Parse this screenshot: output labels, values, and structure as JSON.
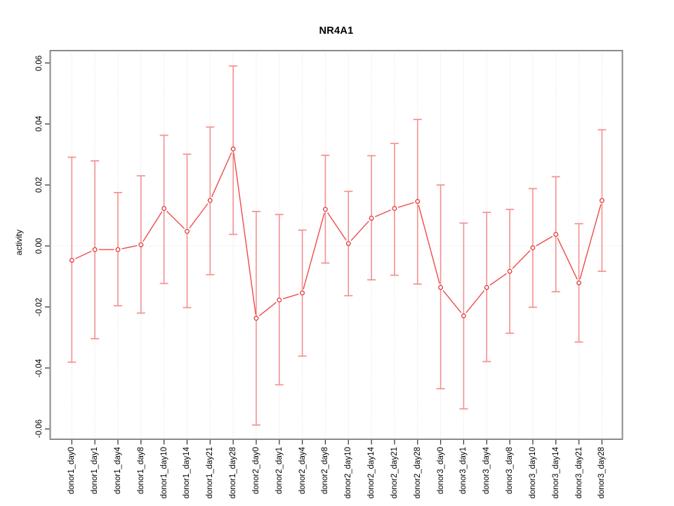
{
  "chart_data": {
    "type": "line",
    "title": "NR4A1",
    "xlabel": "",
    "ylabel": "activity",
    "ylim": [
      -0.0632,
      0.0632
    ],
    "ytick_values": [
      0.06,
      0.04,
      0.02,
      0,
      -0.02,
      -0.04,
      -0.06
    ],
    "ytick_labels": [
      "0.06",
      "0.04",
      "0.02",
      "0.00",
      "-0.02",
      "-0.04",
      "-0.06"
    ],
    "grid": {
      "vertical_gridlines": "dotted at every category",
      "horizontal_gridlines": "dotted zero line only"
    },
    "legend_position": "none",
    "marker": "open-circle",
    "categories": [
      "donor1_day0",
      "donor1_day1",
      "donor1_day4",
      "donor1_day8",
      "donor1_day10",
      "donor1_day14",
      "donor1_day21",
      "donor1_day28",
      "donor2_day0",
      "donor2_day1",
      "donor2_day4",
      "donor2_day8",
      "donor2_day10",
      "donor2_day14",
      "donor2_day21",
      "donor2_day28",
      "donor3_day0",
      "donor3_day1",
      "donor3_day4",
      "donor3_day8",
      "donor3_day10",
      "donor3_day14",
      "donor3_day21",
      "donor3_day28"
    ],
    "series": [
      {
        "name": "activity",
        "values": [
          -0.0047,
          -0.0012,
          -0.0012,
          0.0004,
          0.0123,
          0.0048,
          0.0149,
          0.0318,
          -0.0237,
          -0.0177,
          -0.0154,
          0.012,
          0.0008,
          0.0091,
          0.0123,
          0.0146,
          -0.0136,
          -0.0229,
          -0.0136,
          -0.0083,
          -0.0006,
          0.0038,
          -0.0121,
          0.0149
        ],
        "error_upper": [
          0.0291,
          0.0279,
          0.0175,
          0.023,
          0.0363,
          0.0301,
          0.039,
          0.059,
          0.0113,
          0.0103,
          0.0052,
          0.0297,
          0.0179,
          0.0296,
          0.0336,
          0.0415,
          0.02,
          0.0075,
          0.011,
          0.012,
          0.0188,
          0.0227,
          0.0073,
          0.0381
        ],
        "error_lower": [
          -0.0381,
          -0.0304,
          -0.0196,
          -0.022,
          -0.0123,
          -0.0202,
          -0.0094,
          0.0038,
          -0.0587,
          -0.0455,
          -0.0361,
          -0.0056,
          -0.0163,
          -0.0111,
          -0.0096,
          -0.0125,
          -0.0468,
          -0.0534,
          -0.0379,
          -0.0286,
          -0.0201,
          -0.015,
          -0.0315,
          -0.0083
        ]
      }
    ],
    "colors": {
      "line": "#ee4b4b",
      "marker": "#e03c3c",
      "marker_fill": "#ffffff",
      "error_bar": "#f49090",
      "grid": "#dcdcdc",
      "zero_line": "#dedede",
      "box": "#8a8a8a",
      "tick": "#3c3c3c",
      "text": "#000000"
    }
  }
}
